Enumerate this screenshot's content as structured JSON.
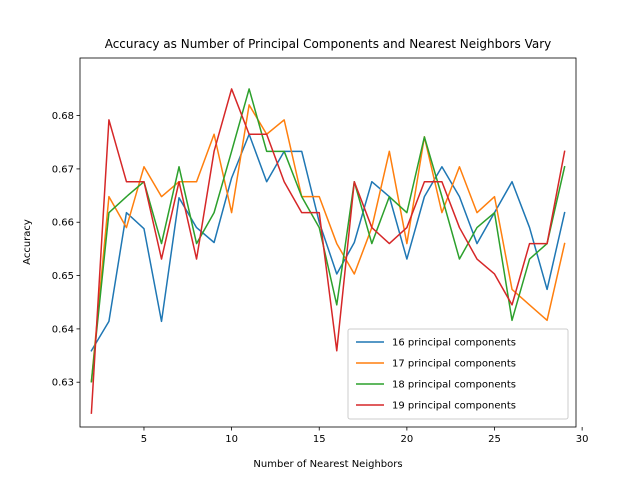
{
  "chart_data": {
    "type": "line",
    "title": "Accuracy as Number of Principal Components and Nearest Neighbors Vary",
    "xlabel": "Number of Nearest Neighbors",
    "ylabel": "Accuracy",
    "xlim": [
      1.35,
      29.65
    ],
    "ylim": [
      0.6216,
      0.6908
    ],
    "xticks": [
      5,
      10,
      15,
      20,
      25,
      30
    ],
    "yticks": [
      0.63,
      0.64,
      0.65,
      0.66,
      0.67,
      0.68
    ],
    "x": [
      2,
      3,
      4,
      5,
      6,
      7,
      8,
      9,
      10,
      11,
      12,
      13,
      14,
      15,
      16,
      17,
      18,
      19,
      20,
      21,
      22,
      23,
      24,
      25,
      26,
      27,
      28,
      29
    ],
    "grid": false,
    "legend_position": "lower right",
    "series": [
      {
        "name": "16 principal components",
        "color": "#1f77b4",
        "values": [
          0.6359,
          0.6414,
          0.6618,
          0.6588,
          0.6414,
          0.6646,
          0.659,
          0.6562,
          0.6683,
          0.6765,
          0.6676,
          0.6733,
          0.6733,
          0.66,
          0.6503,
          0.6562,
          0.6676,
          0.6648,
          0.6531,
          0.6648,
          0.6704,
          0.6648,
          0.656,
          0.6618,
          0.6676,
          0.659,
          0.6474,
          0.6618
        ]
      },
      {
        "name": "17 principal components",
        "color": "#ff7f0e",
        "values": [
          0.6301,
          0.6648,
          0.659,
          0.6704,
          0.6648,
          0.6676,
          0.6676,
          0.6765,
          0.6618,
          0.682,
          0.6765,
          0.6792,
          0.6648,
          0.6648,
          0.656,
          0.6503,
          0.659,
          0.6733,
          0.656,
          0.676,
          0.6618,
          0.6704,
          0.6618,
          0.6648,
          0.6474,
          0.6445,
          0.6416,
          0.656
        ]
      },
      {
        "name": "18 principal components",
        "color": "#2ca02c",
        "values": [
          0.6301,
          0.6618,
          0.6648,
          0.6676,
          0.656,
          0.6704,
          0.656,
          0.6618,
          0.6733,
          0.685,
          0.6733,
          0.6733,
          0.6648,
          0.659,
          0.6445,
          0.6676,
          0.656,
          0.6648,
          0.6618,
          0.676,
          0.6648,
          0.6531,
          0.659,
          0.6618,
          0.6416,
          0.6531,
          0.656,
          0.6704
        ]
      },
      {
        "name": "19 principal components",
        "color": "#d62728",
        "values": [
          0.6242,
          0.6792,
          0.6676,
          0.6676,
          0.6531,
          0.6676,
          0.6531,
          0.6733,
          0.685,
          0.6765,
          0.6765,
          0.6676,
          0.6618,
          0.6618,
          0.6359,
          0.6676,
          0.659,
          0.656,
          0.659,
          0.6676,
          0.6676,
          0.659,
          0.6531,
          0.6503,
          0.6445,
          0.656,
          0.656,
          0.6733
        ]
      }
    ]
  }
}
